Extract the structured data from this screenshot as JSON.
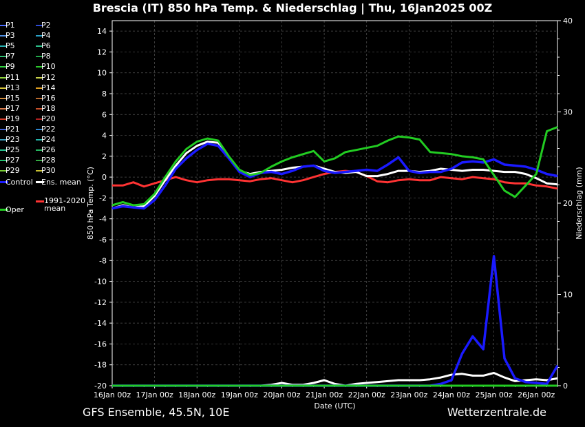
{
  "header": {
    "title": "Brescia  (IT)  850 hPa Temp. & Niederschlag | Thu, 16Jan2025 00Z"
  },
  "footer": {
    "left": "GFS Ensemble, 45.5N, 10E",
    "right": "Wetterzentrale.de"
  },
  "colors": {
    "background": "#000000",
    "grid": "#555555",
    "control": "#1a1aff",
    "ens_mean": "#ffffff",
    "climatology": "#ff3333",
    "oper": "#22cc22"
  },
  "legend": {
    "items": [
      {
        "label": "P1",
        "color": "#4a6cff"
      },
      {
        "label": "P2",
        "color": "#2e4bd6"
      },
      {
        "label": "P3",
        "color": "#4f8ee0"
      },
      {
        "label": "P4",
        "color": "#2aa2c8"
      },
      {
        "label": "P5",
        "color": "#26b0b0"
      },
      {
        "label": "P6",
        "color": "#2cc08a"
      },
      {
        "label": "P7",
        "color": "#2fbf70"
      },
      {
        "label": "P8",
        "color": "#22a84a"
      },
      {
        "label": "P9",
        "color": "#2fd13f"
      },
      {
        "label": "P10",
        "color": "#2bc82b"
      },
      {
        "label": "P11",
        "color": "#8ad23a"
      },
      {
        "label": "P12",
        "color": "#c9d24a"
      },
      {
        "label": "P13",
        "color": "#d4c236"
      },
      {
        "label": "P14",
        "color": "#e0a020"
      },
      {
        "label": "P15",
        "color": "#cf8a3a"
      },
      {
        "label": "P16",
        "color": "#b86a2e"
      },
      {
        "label": "P17",
        "color": "#d87a4a"
      },
      {
        "label": "P18",
        "color": "#c8502a"
      },
      {
        "label": "P19",
        "color": "#d23a2a"
      },
      {
        "label": "P20",
        "color": "#b02020"
      },
      {
        "label": "P21",
        "color": "#4060d8"
      },
      {
        "label": "P22",
        "color": "#2d86d0"
      },
      {
        "label": "P23",
        "color": "#3aa0c0"
      },
      {
        "label": "P24",
        "color": "#24b4a8"
      },
      {
        "label": "P25",
        "color": "#27c28e"
      },
      {
        "label": "P26",
        "color": "#25b860"
      },
      {
        "label": "P27",
        "color": "#22c070"
      },
      {
        "label": "P28",
        "color": "#33aa44"
      },
      {
        "label": "P29",
        "color": "#77cc33"
      },
      {
        "label": "P30",
        "color": "#c8c030"
      },
      {
        "label": "Control",
        "color": "#1a1aff"
      },
      {
        "label": "Ens. mean",
        "color": "#ffffff"
      },
      {
        "label": "1991-2020\nmean",
        "color": "#ff3333"
      },
      {
        "label": "Oper",
        "color": "#22cc22"
      }
    ]
  },
  "chart_data": {
    "type": "line",
    "title": "Brescia  (IT)  850 hPa Temp. & Niederschlag | Thu, 16Jan2025 00Z",
    "xlabel": "Date (UTC)",
    "ylabel": "850 hPa Temp. (°C)",
    "y2label": "Niederschlag (mm)",
    "ylim": [
      -20,
      15
    ],
    "y2lim": [
      0,
      40
    ],
    "yticks": [
      14,
      12,
      10,
      8,
      6,
      4,
      2,
      0,
      -2,
      -4,
      -6,
      -8,
      -10,
      -12,
      -14,
      -16,
      -18,
      -20
    ],
    "y2ticks": [
      0,
      10,
      20,
      30,
      40
    ],
    "xlim": [
      0,
      10.5
    ],
    "xticks": [
      {
        "x": 0,
        "label": "16Jan 00z"
      },
      {
        "x": 1,
        "label": "17Jan 00z"
      },
      {
        "x": 2,
        "label": "18Jan 00z"
      },
      {
        "x": 3,
        "label": "19Jan 00z"
      },
      {
        "x": 4,
        "label": "20Jan 00z"
      },
      {
        "x": 5,
        "label": "21Jan 00z"
      },
      {
        "x": 6,
        "label": "22Jan 00z"
      },
      {
        "x": 7,
        "label": "23Jan 00z"
      },
      {
        "x": 8,
        "label": "24Jan 00z"
      },
      {
        "x": 9,
        "label": "25Jan 00z"
      },
      {
        "x": 10,
        "label": "26Jan 00z"
      }
    ],
    "grid": true,
    "legend_position": "left",
    "x": [
      0,
      0.25,
      0.5,
      0.75,
      1,
      1.25,
      1.5,
      1.75,
      2,
      2.25,
      2.5,
      2.75,
      3,
      3.25,
      3.5,
      3.75,
      4,
      4.25,
      4.5,
      4.75,
      5,
      5.25,
      5.5,
      5.75,
      6,
      6.25,
      6.5,
      6.75,
      7,
      7.25,
      7.5,
      7.75,
      8,
      8.25,
      8.5,
      8.75,
      9,
      9.25,
      9.5,
      9.75,
      10,
      10.25,
      10.5
    ],
    "series": [
      {
        "name": "Control",
        "axis": "temp",
        "values": [
          -3,
          -2.8,
          -2.9,
          -3,
          -2.2,
          -0.8,
          0.8,
          1.8,
          2.6,
          3.2,
          3,
          1.8,
          0.5,
          0,
          0.4,
          0.5,
          0.3,
          0.6,
          1,
          1.1,
          0.6,
          0.4,
          0.5,
          0.6,
          0.7,
          0.6,
          1.2,
          1.9,
          0.6,
          0.4,
          0.5,
          0.5,
          0.8,
          1.4,
          1.5,
          1.4,
          1.7,
          1.2,
          1.1,
          1,
          0.7,
          0.3,
          0.1
        ]
      },
      {
        "name": "Ens. mean",
        "axis": "temp",
        "values": [
          -3,
          -2.7,
          -2.9,
          -2.8,
          -1.8,
          -0.3,
          1.1,
          2.3,
          3,
          3.4,
          3.3,
          1.8,
          0.6,
          0.3,
          0.5,
          0.6,
          0.7,
          0.9,
          1,
          1.1,
          0.8,
          0.5,
          0.4,
          0.5,
          0.1,
          0.1,
          0.3,
          0.6,
          0.6,
          0.5,
          0.6,
          0.8,
          0.7,
          0.6,
          0.7,
          0.7,
          0.6,
          0.5,
          0.5,
          0.3,
          -0.1,
          -0.6,
          -0.7
        ]
      },
      {
        "name": "1991-2020\nmean",
        "axis": "temp",
        "values": [
          -0.8,
          -0.8,
          -0.5,
          -0.9,
          -0.6,
          -0.3,
          0,
          -0.3,
          -0.5,
          -0.3,
          -0.2,
          -0.2,
          -0.3,
          -0.4,
          -0.2,
          -0.1,
          -0.3,
          -0.5,
          -0.3,
          0,
          0.3,
          0.5,
          0.6,
          0.5,
          0.1,
          -0.4,
          -0.5,
          -0.3,
          -0.2,
          -0.3,
          -0.3,
          0,
          -0.1,
          -0.2,
          0,
          -0.1,
          -0.2,
          -0.5,
          -0.6,
          -0.6,
          -0.8,
          -0.9,
          -1.1
        ]
      },
      {
        "name": "Oper",
        "axis": "temp",
        "values": [
          -2.7,
          -2.4,
          -2.7,
          -2.6,
          -1.6,
          0,
          1.5,
          2.7,
          3.4,
          3.7,
          3.5,
          2,
          0.7,
          0.2,
          0.4,
          1,
          1.5,
          1.9,
          2.2,
          2.5,
          1.5,
          1.8,
          2.4,
          2.6,
          2.8,
          3,
          3.5,
          3.9,
          3.8,
          3.6,
          2.4,
          2.3,
          2.2,
          2,
          1.9,
          1.7,
          0.2,
          -1.3,
          -1.9,
          -0.8,
          0.3,
          4.4,
          4.8
        ]
      },
      {
        "name": "Control",
        "axis": "precip",
        "values": [
          0,
          0,
          0,
          0,
          0,
          0,
          0,
          0,
          0,
          0,
          0,
          0,
          0,
          0,
          0,
          0,
          0,
          0,
          0,
          0,
          0,
          0,
          0,
          0,
          0,
          0,
          0,
          0,
          0,
          0,
          0,
          0.2,
          0.6,
          3.5,
          5.4,
          4,
          14.2,
          3,
          0.8,
          0.4,
          0.3,
          0.2,
          2.2
        ]
      },
      {
        "name": "Ens. mean",
        "axis": "precip",
        "values": [
          0,
          0,
          0,
          0,
          0,
          0,
          0,
          0,
          0,
          0,
          0,
          0,
          0,
          0,
          0,
          0.1,
          0.3,
          0.1,
          0.1,
          0.3,
          0.6,
          0.2,
          0,
          0.2,
          0.3,
          0.4,
          0.5,
          0.6,
          0.6,
          0.6,
          0.7,
          0.9,
          1.2,
          1.3,
          1.1,
          1.1,
          1.4,
          0.9,
          0.5,
          0.6,
          0.7,
          0.6,
          0.8
        ]
      },
      {
        "name": "Oper",
        "axis": "precip",
        "values": [
          0,
          0,
          0,
          0,
          0,
          0,
          0,
          0,
          0,
          0,
          0,
          0,
          0,
          0,
          0,
          0,
          0,
          0,
          0,
          0,
          0,
          0,
          0,
          0,
          0,
          0,
          0,
          0,
          0,
          0,
          0,
          0,
          0,
          0,
          0,
          0,
          0,
          0,
          0,
          0,
          0,
          0,
          0
        ]
      }
    ]
  }
}
